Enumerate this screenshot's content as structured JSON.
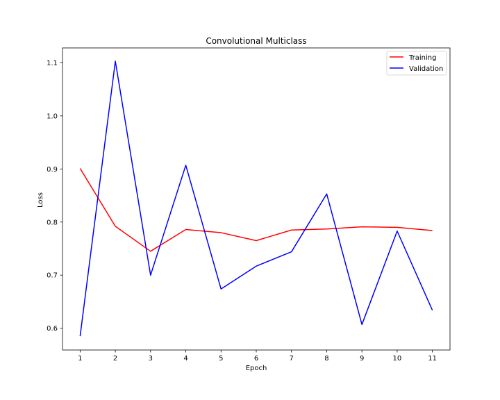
{
  "chart_data": {
    "type": "line",
    "title": "Convolutional Multiclass",
    "xlabel": "Epoch",
    "ylabel": "Loss",
    "x": [
      1,
      2,
      3,
      4,
      5,
      6,
      7,
      8,
      9,
      10,
      11
    ],
    "xticks": [
      "1",
      "2",
      "3",
      "4",
      "5",
      "6",
      "7",
      "8",
      "9",
      "10",
      "11"
    ],
    "yticks": [
      0.6,
      0.7,
      0.8,
      0.9,
      1.0,
      1.1
    ],
    "ytick_labels": [
      "0.6",
      "0.7",
      "0.8",
      "0.9",
      "1.0",
      "1.1"
    ],
    "xlim": [
      0.5,
      11.5
    ],
    "ylim": [
      0.559,
      1.128
    ],
    "grid": false,
    "legend_position": "upper right",
    "series": [
      {
        "name": "Training",
        "color": "#ff0000",
        "values": [
          0.901,
          0.792,
          0.745,
          0.786,
          0.78,
          0.765,
          0.785,
          0.787,
          0.791,
          0.79,
          0.784
        ]
      },
      {
        "name": "Validation",
        "color": "#0000ff",
        "values": [
          0.585,
          1.103,
          0.7,
          0.907,
          0.674,
          0.717,
          0.744,
          0.853,
          0.607,
          0.783,
          0.634
        ]
      }
    ]
  }
}
